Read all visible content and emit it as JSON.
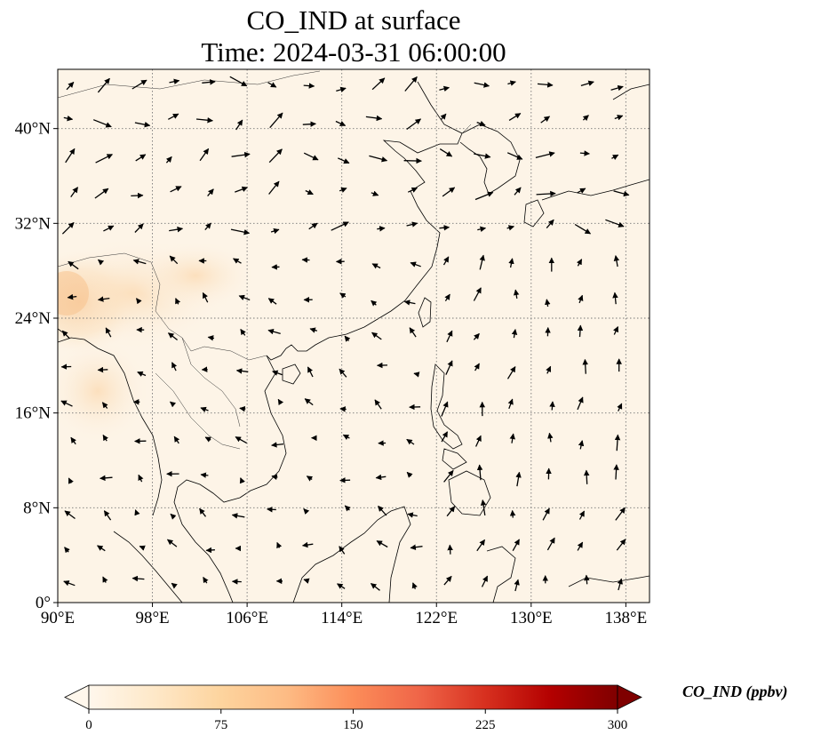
{
  "title": {
    "line1": "CO_IND at surface",
    "line2": "Time: 2024-03-31 06:00:00"
  },
  "axes": {
    "x_ticks": [
      "90°E",
      "98°E",
      "106°E",
      "114°E",
      "122°E",
      "130°E",
      "138°E"
    ],
    "x_values": [
      90,
      98,
      106,
      114,
      122,
      130,
      138
    ],
    "y_ticks": [
      "40°N",
      "32°N",
      "24°N",
      "16°N",
      "8°N",
      "0°"
    ],
    "y_values": [
      40,
      32,
      24,
      16,
      8,
      0
    ],
    "lon_range": [
      90,
      140
    ],
    "lat_range": [
      0,
      45
    ],
    "gridlines": "dotted"
  },
  "colorbar": {
    "label": "CO_IND (ppbv)",
    "ticks": [
      "0",
      "75",
      "150",
      "225",
      "300"
    ],
    "tick_values": [
      0,
      75,
      150,
      225,
      300
    ],
    "range": [
      0,
      300
    ],
    "extend": "both",
    "colormap": "OrRd",
    "colors": [
      "#fff7ec",
      "#fee8c8",
      "#fdd49e",
      "#fdbb84",
      "#fc8d59",
      "#ef6548",
      "#d7301f",
      "#b30000",
      "#7f0000"
    ]
  },
  "field": {
    "description_colors": {
      "background": "#fdf4e7",
      "plume_light": "#fbe3c4",
      "plume_mid": "#f8c997"
    }
  },
  "wind_vectors_note": "",
  "colors": {
    "coastline": "#000000",
    "border": "#333333",
    "grid": "#777777",
    "arrow": "#000000"
  }
}
